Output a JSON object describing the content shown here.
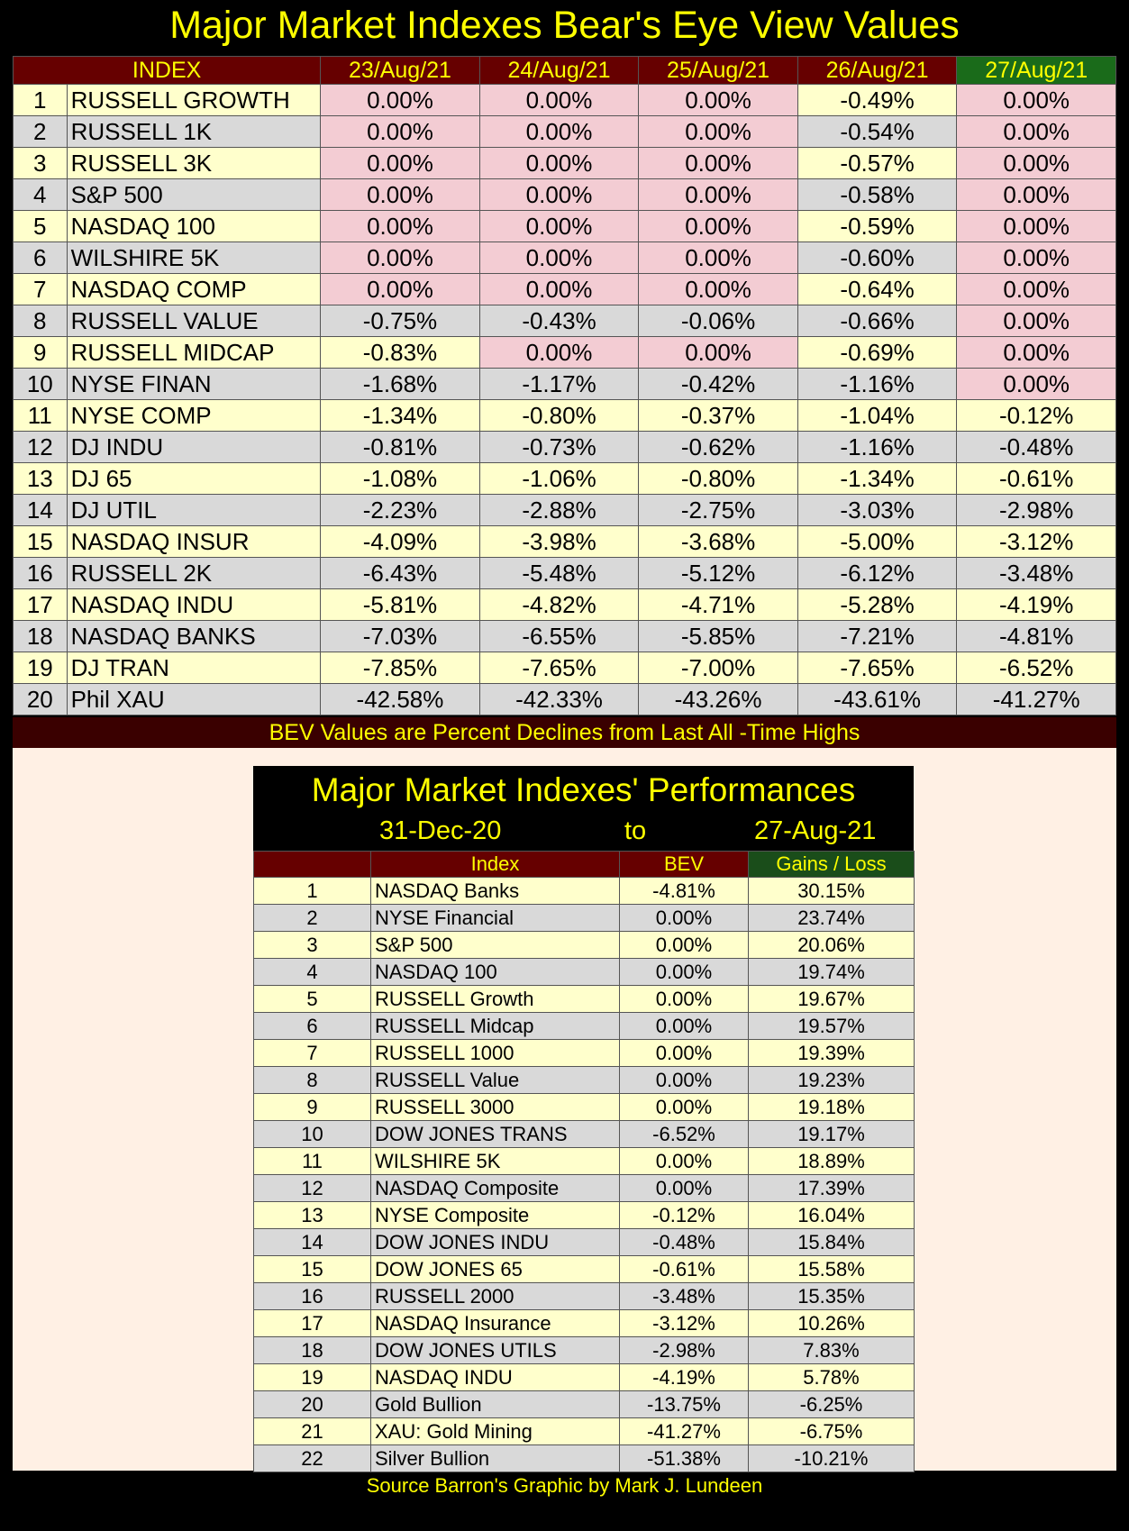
{
  "title": "Major Market Indexes Bear's Eye View Values",
  "bev_table": {
    "headers": [
      "INDEX",
      "23/Aug/21",
      "24/Aug/21",
      "25/Aug/21",
      "26/Aug/21",
      "27/Aug/21"
    ],
    "rows": [
      {
        "rank": "1",
        "name": "RUSSELL GROWTH",
        "values": [
          "0.00%",
          "0.00%",
          "0.00%",
          "-0.49%",
          "0.00%"
        ]
      },
      {
        "rank": "2",
        "name": "RUSSELL 1K",
        "values": [
          "0.00%",
          "0.00%",
          "0.00%",
          "-0.54%",
          "0.00%"
        ]
      },
      {
        "rank": "3",
        "name": "RUSSELL 3K",
        "values": [
          "0.00%",
          "0.00%",
          "0.00%",
          "-0.57%",
          "0.00%"
        ]
      },
      {
        "rank": "4",
        "name": "S&P 500",
        "values": [
          "0.00%",
          "0.00%",
          "0.00%",
          "-0.58%",
          "0.00%"
        ]
      },
      {
        "rank": "5",
        "name": "NASDAQ 100",
        "values": [
          "0.00%",
          "0.00%",
          "0.00%",
          "-0.59%",
          "0.00%"
        ]
      },
      {
        "rank": "6",
        "name": "WILSHIRE 5K",
        "values": [
          "0.00%",
          "0.00%",
          "0.00%",
          "-0.60%",
          "0.00%"
        ]
      },
      {
        "rank": "7",
        "name": "NASDAQ COMP",
        "values": [
          "0.00%",
          "0.00%",
          "0.00%",
          "-0.64%",
          "0.00%"
        ]
      },
      {
        "rank": "8",
        "name": "RUSSELL VALUE",
        "values": [
          "-0.75%",
          "-0.43%",
          "-0.06%",
          "-0.66%",
          "0.00%"
        ]
      },
      {
        "rank": "9",
        "name": "RUSSELL MIDCAP",
        "values": [
          "-0.83%",
          "0.00%",
          "0.00%",
          "-0.69%",
          "0.00%"
        ]
      },
      {
        "rank": "10",
        "name": "NYSE FINAN",
        "values": [
          "-1.68%",
          "-1.17%",
          "-0.42%",
          "-1.16%",
          "0.00%"
        ]
      },
      {
        "rank": "11",
        "name": "NYSE COMP",
        "values": [
          "-1.34%",
          "-0.80%",
          "-0.37%",
          "-1.04%",
          "-0.12%"
        ]
      },
      {
        "rank": "12",
        "name": "DJ  INDU",
        "values": [
          "-0.81%",
          "-0.73%",
          "-0.62%",
          "-1.16%",
          "-0.48%"
        ]
      },
      {
        "rank": "13",
        "name": "DJ  65",
        "values": [
          "-1.08%",
          "-1.06%",
          "-0.80%",
          "-1.34%",
          "-0.61%"
        ]
      },
      {
        "rank": "14",
        "name": "DJ  UTIL",
        "values": [
          "-2.23%",
          "-2.88%",
          "-2.75%",
          "-3.03%",
          "-2.98%"
        ]
      },
      {
        "rank": "15",
        "name": "NASDAQ INSUR",
        "values": [
          "-4.09%",
          "-3.98%",
          "-3.68%",
          "-5.00%",
          "-3.12%"
        ]
      },
      {
        "rank": "16",
        "name": "RUSSELL 2K",
        "values": [
          "-6.43%",
          "-5.48%",
          "-5.12%",
          "-6.12%",
          "-3.48%"
        ]
      },
      {
        "rank": "17",
        "name": "NASDAQ INDU",
        "values": [
          "-5.81%",
          "-4.82%",
          "-4.71%",
          "-5.28%",
          "-4.19%"
        ]
      },
      {
        "rank": "18",
        "name": "NASDAQ BANKS",
        "values": [
          "-7.03%",
          "-6.55%",
          "-5.85%",
          "-7.21%",
          "-4.81%"
        ]
      },
      {
        "rank": "19",
        "name": "DJ  TRAN",
        "values": [
          "-7.85%",
          "-7.65%",
          "-7.00%",
          "-7.65%",
          "-6.52%"
        ]
      },
      {
        "rank": "20",
        "name": "Phil XAU",
        "values": [
          "-42.58%",
          "-42.33%",
          "-43.26%",
          "-43.61%",
          "-41.27%"
        ]
      }
    ],
    "footnote": "BEV Values are Percent Declines from Last All -Time Highs"
  },
  "performance": {
    "title": "Major Market Indexes' Performances",
    "from": "31-Dec-20",
    "to_word": "to",
    "to": "27-Aug-21",
    "headers": [
      "",
      "Index",
      "BEV",
      "Gains / Loss"
    ],
    "rows": [
      {
        "rank": "1",
        "name": "NASDAQ Banks",
        "bev": "-4.81%",
        "gain": "30.15%"
      },
      {
        "rank": "2",
        "name": "NYSE Financial",
        "bev": "0.00%",
        "gain": "23.74%"
      },
      {
        "rank": "3",
        "name": "S&P 500",
        "bev": "0.00%",
        "gain": "20.06%"
      },
      {
        "rank": "4",
        "name": "NASDAQ 100",
        "bev": "0.00%",
        "gain": "19.74%"
      },
      {
        "rank": "5",
        "name": "RUSSELL Growth",
        "bev": "0.00%",
        "gain": "19.67%"
      },
      {
        "rank": "6",
        "name": "RUSSELL Midcap",
        "bev": "0.00%",
        "gain": "19.57%"
      },
      {
        "rank": "7",
        "name": "RUSSELL 1000",
        "bev": "0.00%",
        "gain": "19.39%"
      },
      {
        "rank": "8",
        "name": "RUSSELL Value",
        "bev": "0.00%",
        "gain": "19.23%"
      },
      {
        "rank": "9",
        "name": "RUSSELL 3000",
        "bev": "0.00%",
        "gain": "19.18%"
      },
      {
        "rank": "10",
        "name": "DOW JONES TRANS",
        "bev": "-6.52%",
        "gain": "19.17%"
      },
      {
        "rank": "11",
        "name": "WILSHIRE 5K",
        "bev": "0.00%",
        "gain": "18.89%"
      },
      {
        "rank": "12",
        "name": "NASDAQ Composite",
        "bev": "0.00%",
        "gain": "17.39%"
      },
      {
        "rank": "13",
        "name": "NYSE Composite",
        "bev": "-0.12%",
        "gain": "16.04%"
      },
      {
        "rank": "14",
        "name": "DOW JONES INDU",
        "bev": "-0.48%",
        "gain": "15.84%"
      },
      {
        "rank": "15",
        "name": "DOW JONES 65",
        "bev": "-0.61%",
        "gain": "15.58%"
      },
      {
        "rank": "16",
        "name": "RUSSELL 2000",
        "bev": "-3.48%",
        "gain": "15.35%"
      },
      {
        "rank": "17",
        "name": "NASDAQ Insurance",
        "bev": "-3.12%",
        "gain": "10.26%"
      },
      {
        "rank": "18",
        "name": "DOW JONES UTILS",
        "bev": "-2.98%",
        "gain": "7.83%"
      },
      {
        "rank": "19",
        "name": "NASDAQ INDU",
        "bev": "-4.19%",
        "gain": "5.78%"
      },
      {
        "rank": "20",
        "name": "Gold Bullion",
        "bev": "-13.75%",
        "gain": "-6.25%"
      },
      {
        "rank": "21",
        "name": "XAU: Gold Mining",
        "bev": "-41.27%",
        "gain": "-6.75%"
      },
      {
        "rank": "22",
        "name": "Silver Bullion",
        "bev": "-51.38%",
        "gain": "-10.21%"
      }
    ]
  },
  "source": "Source Barron's   Graphic by Mark J. Lundeen",
  "colors": {
    "title_text": "#ffff00",
    "header_bg": "#660000",
    "last_header_bg": "#1a6b1a",
    "row_odd": "#ffffcc",
    "row_even": "#d9d9d9",
    "at_high_highlight": "#f3ccd3",
    "panel_bg": "#fff0e4"
  }
}
